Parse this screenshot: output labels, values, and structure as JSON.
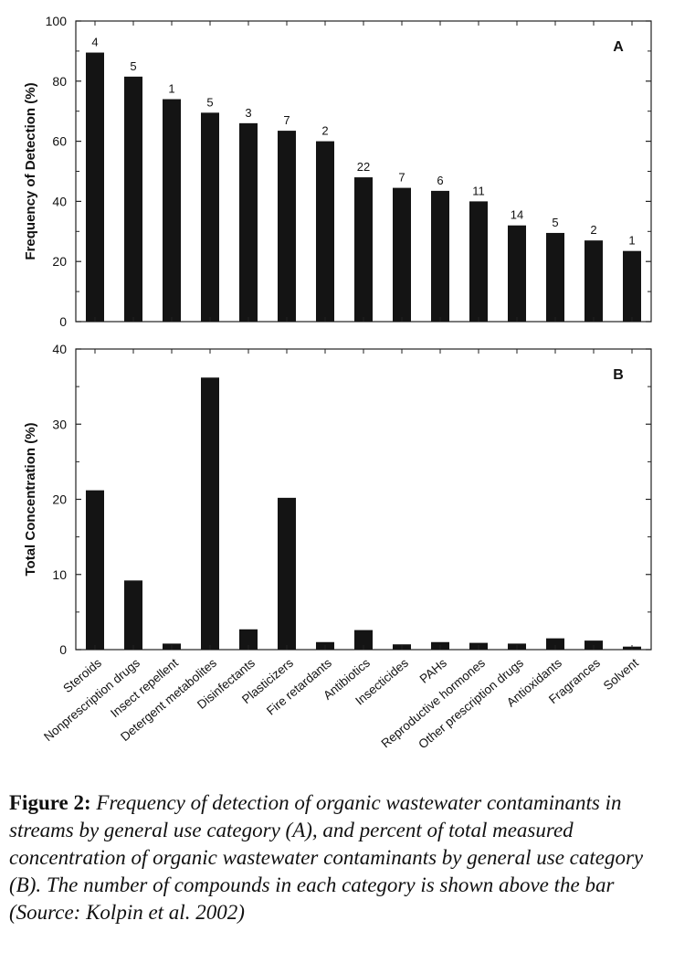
{
  "chart_data": [
    {
      "type": "bar",
      "panel_label": "A",
      "ylabel": "Frequency of Detection (%)",
      "ylim": [
        0,
        100
      ],
      "yticks": [
        0,
        20,
        40,
        60,
        80,
        100
      ],
      "categories": [
        "Steroids",
        "Nonprescription drugs",
        "Insect repellent",
        "Detergent metabolites",
        "Disinfectants",
        "Plasticizers",
        "Fire retardants",
        "Antibiotics",
        "Insecticides",
        "PAHs",
        "Reproductive hormones",
        "Other prescription drugs",
        "Antioxidants",
        "Fragrances",
        "Solvent"
      ],
      "values": [
        89.5,
        81.5,
        74,
        69.5,
        66,
        63.5,
        60,
        48,
        44.5,
        43.5,
        40,
        32,
        29.5,
        27,
        23.5
      ],
      "data_labels": [
        "4",
        "5",
        "1",
        "5",
        "3",
        "7",
        "2",
        "22",
        "7",
        "6",
        "11",
        "14",
        "5",
        "2",
        "1"
      ]
    },
    {
      "type": "bar",
      "panel_label": "B",
      "ylabel": "Total Concentration (%)",
      "ylim": [
        0,
        40
      ],
      "yticks": [
        0,
        10,
        20,
        30,
        40
      ],
      "categories": [
        "Steroids",
        "Nonprescription drugs",
        "Insect repellent",
        "Detergent metabolites",
        "Disinfectants",
        "Plasticizers",
        "Fire retardants",
        "Antibiotics",
        "Insecticides",
        "PAHs",
        "Reproductive hormones",
        "Other prescription drugs",
        "Antioxidants",
        "Fragrances",
        "Solvent"
      ],
      "values": [
        21.2,
        9.2,
        0.8,
        36.2,
        2.7,
        20.2,
        1.0,
        2.6,
        0.7,
        1.0,
        0.9,
        0.8,
        1.5,
        1.2,
        0.4
      ]
    }
  ],
  "caption": {
    "label": "Figure 2:",
    "text": "Frequency of detection of organic wastewater contaminants in streams by general use category (A), and percent of total measured concentration of organic wastewater contaminants by general use category (B). The number of compounds in each category is shown above the bar (Source: Kolpin et al. 2002)"
  },
  "colors": {
    "bar": "#141414",
    "axis": "#222222",
    "text": "#111111"
  }
}
